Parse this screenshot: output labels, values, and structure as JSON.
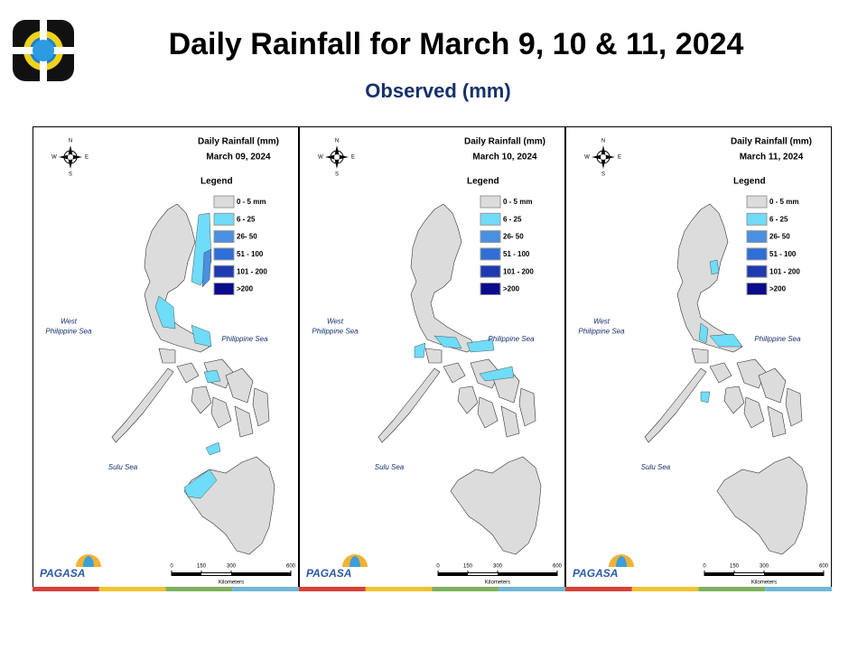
{
  "header": {
    "title": "Daily Rainfall for March 9, 10 & 11, 2024",
    "subtitle": "Observed (mm)"
  },
  "map_labels": {
    "heading": "Daily Rainfall (mm)",
    "legend_title": "Legend",
    "legend": [
      {
        "label": "0 - 5 mm",
        "color": "#dcdcdc"
      },
      {
        "label": "6 - 25",
        "color": "#6fdcf8"
      },
      {
        "label": "26- 50",
        "color": "#4a90e0"
      },
      {
        "label": "51 - 100",
        "color": "#2f6fd6"
      },
      {
        "label": "101 - 200",
        "color": "#1e3ab0"
      },
      {
        "label": ">200",
        "color": "#0a0a8c"
      }
    ],
    "seas": [
      [
        "West",
        "Philippine Sea"
      ],
      [
        "Philippine Sea"
      ],
      [
        "Sulu Sea"
      ]
    ],
    "compass": [
      "N",
      "E",
      "S",
      "W"
    ],
    "scale_ticks": [
      0,
      150,
      300,
      600
    ],
    "scale_lim": [
      0,
      600
    ],
    "scale_unit": "Kilometers",
    "agency": "PAGASA"
  },
  "maps": [
    {
      "date": "March 09, 2024"
    },
    {
      "date": "March 10, 2024"
    },
    {
      "date": "March 11, 2024"
    }
  ]
}
